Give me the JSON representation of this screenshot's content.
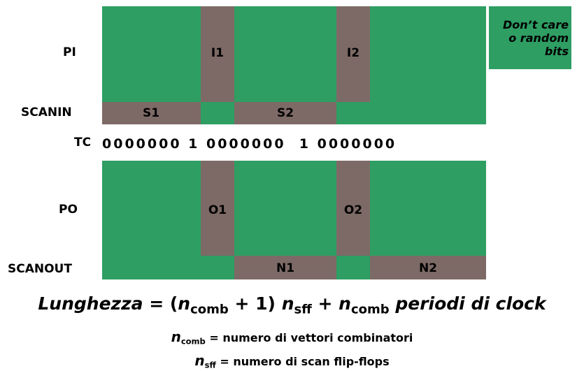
{
  "colors": {
    "dont_care": "#2e9e63",
    "data_bits": "#7d6a66"
  },
  "row_labels": {
    "pi": "PI",
    "scanin": "SCANIN",
    "tc": "TC",
    "po": "PO",
    "scanout": "SCANOUT"
  },
  "pi_blocks": [
    "I1",
    "I2"
  ],
  "scanin_blocks": [
    "S1",
    "S2"
  ],
  "po_blocks": [
    "O1",
    "O2"
  ],
  "scanout_blocks": [
    "N1",
    "N2"
  ],
  "tc_sequence": "0000000 1 0000000  1 0000000",
  "legend": "Don’t care\no random\nbits",
  "formula": {
    "term_lunghezza": "Lunghezza",
    "eq_open": " = (",
    "n1": "n",
    "comb1": "comb",
    "plus_one": " + 1) ",
    "n2": "n",
    "sff": "sff",
    "plus": " + ",
    "n3": "n",
    "comb2": "comb",
    "periodi": " periodi di clock"
  },
  "definitions": {
    "comb_n": "n",
    "comb_sub": "comb",
    "comb_text": " = numero di vettori combinatori",
    "sff_n": "n",
    "sff_sub": "sff",
    "sff_text": " = numero di scan flip-flops"
  }
}
